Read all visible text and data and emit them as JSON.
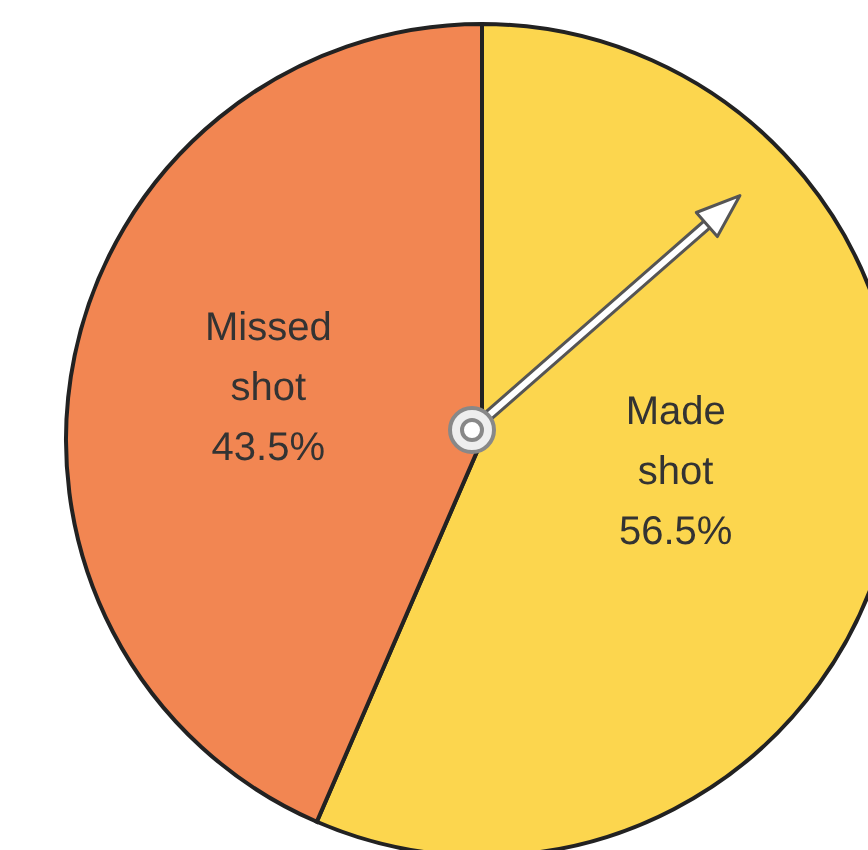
{
  "chart_data": {
    "type": "pie",
    "categories": [
      "Made shot",
      "Missed shot"
    ],
    "values": [
      56.5,
      43.5
    ],
    "colors": [
      "#fcd64e",
      "#f28652"
    ],
    "value_labels": [
      "56.5%",
      "43.5%"
    ],
    "needle": "Made shot"
  }
}
